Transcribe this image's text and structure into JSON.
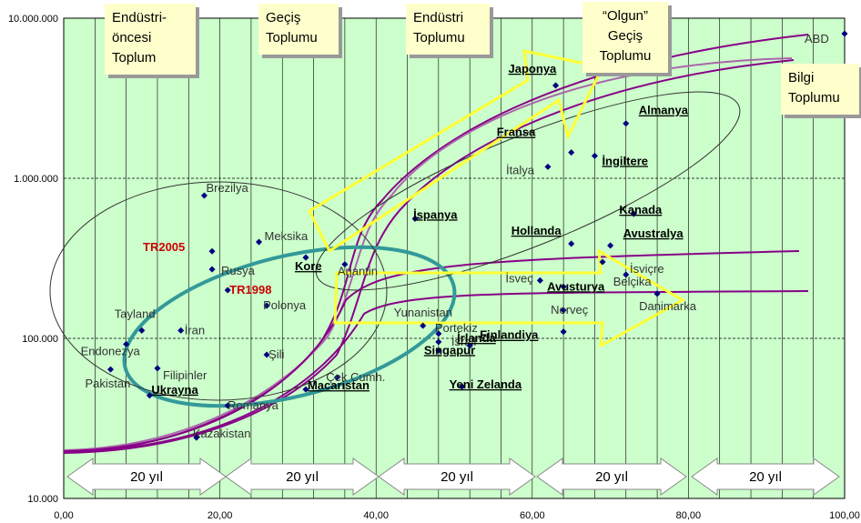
{
  "chart_data": {
    "type": "scatter",
    "x_axis": {
      "min": 0,
      "max": 100,
      "ticks": [
        "0,00",
        "20,00",
        "40,00",
        "60,00",
        "80,00",
        "100,00"
      ]
    },
    "y_axis": {
      "scale": "log",
      "min": 10000,
      "max": 10000000,
      "ticks": [
        "10.000",
        "100.000",
        "1.000.000",
        "10.000.000"
      ]
    },
    "points": [
      {
        "label": "ABD",
        "x": 100,
        "y": 8000000,
        "bold": false,
        "underline": false,
        "color": "#333333"
      },
      {
        "label": "Japonya",
        "x": 63,
        "y": 3800000,
        "bold": true,
        "underline": true,
        "color": "#000000"
      },
      {
        "label": "Almanya",
        "x": 72,
        "y": 2200000,
        "bold": true,
        "underline": true,
        "color": "#000000"
      },
      {
        "label": "Fransa",
        "x": 65,
        "y": 1450000,
        "bold": true,
        "underline": true,
        "color": "#000000"
      },
      {
        "label": "İngiltere",
        "x": 68,
        "y": 1380000,
        "bold": true,
        "underline": true,
        "color": "#000000"
      },
      {
        "label": "İtalya",
        "x": 62,
        "y": 1180000,
        "bold": false,
        "underline": false,
        "color": "#333333"
      },
      {
        "label": "Brezilya",
        "x": 18,
        "y": 780000,
        "bold": false,
        "underline": false,
        "color": "#333333"
      },
      {
        "label": "İspanya",
        "x": 45,
        "y": 560000,
        "bold": true,
        "underline": true,
        "color": "#000000"
      },
      {
        "label": "Kanada",
        "x": 73,
        "y": 600000,
        "bold": true,
        "underline": true,
        "color": "#000000"
      },
      {
        "label": "Hollanda",
        "x": 65,
        "y": 390000,
        "bold": true,
        "underline": true,
        "color": "#000000"
      },
      {
        "label": "Avustralya",
        "x": 70,
        "y": 380000,
        "bold": true,
        "underline": true,
        "color": "#000000"
      },
      {
        "label": "TR2005",
        "x": 19,
        "y": 350000,
        "bold": true,
        "underline": false,
        "color": "#cc0000"
      },
      {
        "label": "Meksika",
        "x": 25,
        "y": 400000,
        "bold": false,
        "underline": false,
        "color": "#333333"
      },
      {
        "label": "İsviçre",
        "x": 69,
        "y": 300000,
        "bold": false,
        "underline": false,
        "color": "#333333"
      },
      {
        "label": "Kore",
        "x": 31,
        "y": 320000,
        "bold": true,
        "underline": true,
        "color": "#000000"
      },
      {
        "label": "Arjantin",
        "x": 36,
        "y": 290000,
        "bold": false,
        "underline": false,
        "color": "#333333"
      },
      {
        "label": "Rusya",
        "x": 19,
        "y": 270000,
        "bold": false,
        "underline": false,
        "color": "#333333"
      },
      {
        "label": "İsveç",
        "x": 61,
        "y": 230000,
        "bold": false,
        "underline": false,
        "color": "#333333"
      },
      {
        "label": "Belçika",
        "x": 72,
        "y": 250000,
        "bold": false,
        "underline": false,
        "color": "#333333"
      },
      {
        "label": "Avusturya",
        "x": 64,
        "y": 210000,
        "bold": true,
        "underline": true,
        "color": "#000000"
      },
      {
        "label": "TR1998",
        "x": 21,
        "y": 200000,
        "bold": true,
        "underline": false,
        "color": "#cc0000"
      },
      {
        "label": "Danimarka",
        "x": 76,
        "y": 190000,
        "bold": false,
        "underline": false,
        "color": "#333333"
      },
      {
        "label": "Polonya",
        "x": 26,
        "y": 160000,
        "bold": false,
        "underline": false,
        "color": "#333333"
      },
      {
        "label": "Norveç",
        "x": 64,
        "y": 150000,
        "bold": false,
        "underline": false,
        "color": "#333333"
      },
      {
        "label": "Tayland",
        "x": 10,
        "y": 112000,
        "bold": false,
        "underline": false,
        "color": "#333333"
      },
      {
        "label": "İran",
        "x": 15,
        "y": 112000,
        "bold": false,
        "underline": false,
        "color": "#333333"
      },
      {
        "label": "Yunanistan",
        "x": 46,
        "y": 120000,
        "bold": false,
        "underline": false,
        "color": "#333333"
      },
      {
        "label": "Portekiz",
        "x": 48,
        "y": 107000,
        "bold": false,
        "underline": false,
        "color": "#333333"
      },
      {
        "label": "Finlandiya",
        "x": 64,
        "y": 110000,
        "bold": true,
        "underline": true,
        "color": "#000000"
      },
      {
        "label": "İsrail",
        "x": 48,
        "y": 95000,
        "bold": false,
        "underline": false,
        "color": "#333333"
      },
      {
        "label": "İrlanda",
        "x": 52,
        "y": 90000,
        "bold": true,
        "underline": true,
        "color": "#000000"
      },
      {
        "label": "Endonezya",
        "x": 8,
        "y": 92000,
        "bold": false,
        "underline": false,
        "color": "#333333"
      },
      {
        "label": "Şili",
        "x": 26,
        "y": 79000,
        "bold": false,
        "underline": false,
        "color": "#333333"
      },
      {
        "label": "Singapur",
        "x": 48,
        "y": 84000,
        "bold": true,
        "underline": true,
        "color": "#000000"
      },
      {
        "label": "Pakistan",
        "x": 6,
        "y": 64000,
        "bold": false,
        "underline": false,
        "color": "#333333"
      },
      {
        "label": "Filipinler",
        "x": 12,
        "y": 65000,
        "bold": false,
        "underline": false,
        "color": "#333333"
      },
      {
        "label": "Çek Cumh.",
        "x": 35,
        "y": 57000,
        "bold": false,
        "underline": false,
        "color": "#333333"
      },
      {
        "label": "Yeni Zelanda",
        "x": 51,
        "y": 50000,
        "bold": true,
        "underline": true,
        "color": "#000000"
      },
      {
        "label": "Macaristan",
        "x": 31,
        "y": 48000,
        "bold": true,
        "underline": true,
        "color": "#000000"
      },
      {
        "label": "Ukrayna",
        "x": 11,
        "y": 44000,
        "bold": true,
        "underline": true,
        "color": "#000000"
      },
      {
        "label": "Romanya",
        "x": 21,
        "y": 38000,
        "bold": false,
        "underline": false,
        "color": "#333333"
      },
      {
        "label": "Kazakistan",
        "x": 17,
        "y": 24000,
        "bold": false,
        "underline": false,
        "color": "#333333"
      }
    ],
    "stages": [
      "Endüstri-\nöncesi\nToplum",
      "Geçiş\nToplumu",
      "Endüstri\nToplumu",
      "“Olgun”\nGeçiş\nToplumu",
      "Bilgi\nToplumu"
    ],
    "periods": [
      "20 yıl",
      "20 yıl",
      "20 yıl",
      "20 yıl",
      "20 yıl"
    ],
    "grid": true,
    "colors": {
      "plot_bg": "#ccffcc",
      "gridline": "#000000",
      "highlight": "#ffff66",
      "teal": "#339999",
      "curve": "#880088",
      "stage_box": "#ffffcc",
      "point": "#000080"
    }
  }
}
